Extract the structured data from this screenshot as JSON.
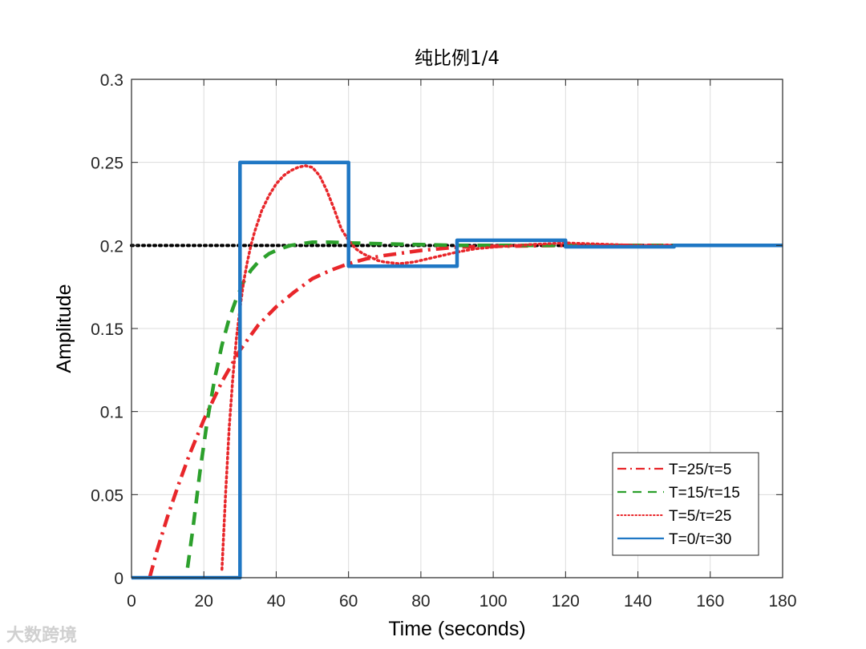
{
  "chart_data": {
    "type": "line",
    "title": "纯比例1/4",
    "xlabel": "Time (seconds)",
    "ylabel": "Amplitude",
    "xlim": [
      0,
      180
    ],
    "ylim": [
      0,
      0.3
    ],
    "xticks": [
      "0",
      "20",
      "40",
      "60",
      "80",
      "100",
      "120",
      "140",
      "160",
      "180"
    ],
    "yticks": [
      "0",
      "0.05",
      "0.1",
      "0.15",
      "0.2",
      "0.25",
      "0.3"
    ],
    "grid": true,
    "legend_position": "bottom-right",
    "reference_line": {
      "y": 0.2,
      "color": "#000000",
      "style": "dotted"
    },
    "series": [
      {
        "name": "T=25/τ=5",
        "color": "#e8262a",
        "style": "dashdot",
        "x": [
          5,
          7,
          10,
          13,
          16,
          20,
          25,
          30,
          35,
          40,
          45,
          50,
          55,
          60,
          65,
          70,
          80,
          90,
          100,
          120,
          140,
          160,
          180
        ],
        "y": [
          0,
          0.016,
          0.037,
          0.056,
          0.074,
          0.095,
          0.118,
          0.137,
          0.152,
          0.163,
          0.172,
          0.18,
          0.185,
          0.189,
          0.192,
          0.194,
          0.197,
          0.199,
          0.1995,
          0.2,
          0.2,
          0.2,
          0.2
        ]
      },
      {
        "name": "T=15/τ=15",
        "color": "#2ca02c",
        "style": "dashed",
        "x": [
          15.5,
          17,
          19,
          21,
          23,
          25,
          27,
          29,
          31,
          33,
          35,
          38,
          41,
          44,
          47,
          50,
          55,
          60,
          70,
          80,
          90,
          100,
          120,
          140,
          160,
          180
        ],
        "y": [
          0.006,
          0.03,
          0.065,
          0.095,
          0.12,
          0.14,
          0.156,
          0.168,
          0.178,
          0.185,
          0.19,
          0.195,
          0.198,
          0.2,
          0.201,
          0.202,
          0.202,
          0.2015,
          0.201,
          0.2005,
          0.2,
          0.2,
          0.2,
          0.2,
          0.2,
          0.2
        ]
      },
      {
        "name": "T=5/τ=25",
        "color": "#e8262a",
        "style": "dotted",
        "x": [
          25,
          26,
          27,
          28,
          29,
          30,
          31,
          32,
          33,
          34,
          36,
          38,
          40,
          42,
          44,
          46,
          48,
          50,
          52,
          54,
          56,
          58,
          60,
          62,
          64,
          66,
          68,
          70,
          74,
          78,
          82,
          86,
          90,
          95,
          100,
          110,
          120,
          140,
          160,
          180
        ],
        "y": [
          0.005,
          0.05,
          0.09,
          0.12,
          0.144,
          0.162,
          0.178,
          0.19,
          0.2,
          0.208,
          0.221,
          0.23,
          0.237,
          0.242,
          0.245,
          0.247,
          0.248,
          0.247,
          0.242,
          0.233,
          0.222,
          0.21,
          0.203,
          0.198,
          0.195,
          0.193,
          0.191,
          0.19,
          0.189,
          0.19,
          0.192,
          0.194,
          0.196,
          0.198,
          0.199,
          0.2005,
          0.2015,
          0.2,
          0.2,
          0.2
        ]
      },
      {
        "name": "T=0/τ=30",
        "color": "#1f77c4",
        "style": "solid",
        "x": [
          0,
          30,
          30,
          60,
          60,
          90,
          90,
          120,
          120,
          150,
          150,
          180
        ],
        "y": [
          0,
          0,
          0.25,
          0.25,
          0.1875,
          0.1875,
          0.2031,
          0.2031,
          0.1992,
          0.1992,
          0.2,
          0.2
        ]
      }
    ]
  },
  "watermark": "大数跨境"
}
